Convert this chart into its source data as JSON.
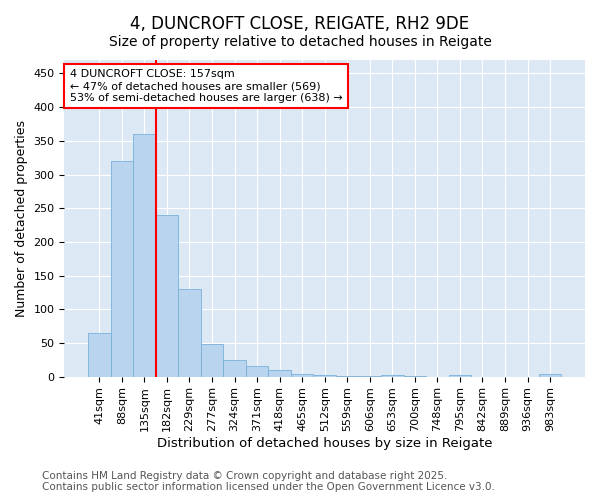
{
  "title": "4, DUNCROFT CLOSE, REIGATE, RH2 9DE",
  "subtitle": "Size of property relative to detached houses in Reigate",
  "xlabel": "Distribution of detached houses by size in Reigate",
  "ylabel": "Number of detached properties",
  "bins": [
    "41sqm",
    "88sqm",
    "135sqm",
    "182sqm",
    "229sqm",
    "277sqm",
    "324sqm",
    "371sqm",
    "418sqm",
    "465sqm",
    "512sqm",
    "559sqm",
    "606sqm",
    "653sqm",
    "700sqm",
    "748sqm",
    "795sqm",
    "842sqm",
    "889sqm",
    "936sqm",
    "983sqm"
  ],
  "values": [
    65,
    320,
    360,
    240,
    130,
    48,
    25,
    15,
    10,
    4,
    2,
    1,
    1,
    3,
    1,
    0,
    3,
    0,
    0,
    0,
    4
  ],
  "bar_color": "#b8d4ee",
  "bar_edge_color": "#7ab0d8",
  "vline_x": 2.5,
  "vline_color": "red",
  "annotation_text": "4 DUNCROFT CLOSE: 157sqm\n← 47% of detached houses are smaller (569)\n53% of semi-detached houses are larger (638) →",
  "annotation_box_color": "white",
  "annotation_box_edge_color": "red",
  "ylim": [
    0,
    470
  ],
  "yticks": [
    0,
    50,
    100,
    150,
    200,
    250,
    300,
    350,
    400,
    450
  ],
  "footer_line1": "Contains HM Land Registry data © Crown copyright and database right 2025.",
  "footer_line2": "Contains public sector information licensed under the Open Government Licence v3.0.",
  "bg_color": "#ffffff",
  "plot_bg_color": "#dce9f5",
  "grid_color": "#ffffff",
  "title_fontsize": 12,
  "subtitle_fontsize": 10,
  "xlabel_fontsize": 9.5,
  "ylabel_fontsize": 9,
  "tick_fontsize": 8,
  "footer_fontsize": 7.5
}
